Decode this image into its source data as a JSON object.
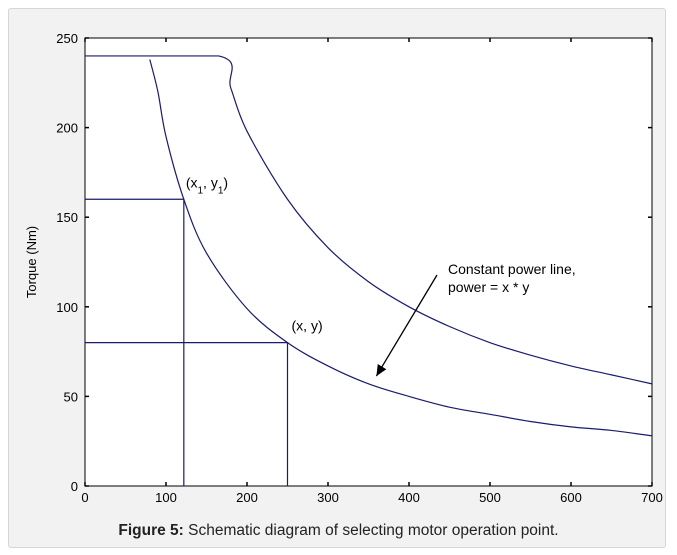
{
  "caption": {
    "label": "Figure 5:",
    "text": " Schematic diagram of selecting motor operation point."
  },
  "colors": {
    "curve": "#1a1a6e",
    "axis": "#000000",
    "panel": "#ffffff",
    "frame_bg": "#f2f2f2"
  },
  "chart_data": {
    "type": "line",
    "title": "",
    "xlabel": "",
    "ylabel": "Torque (Nm)",
    "xlim": [
      0,
      700
    ],
    "ylim": [
      0,
      250
    ],
    "x_ticks": [
      0,
      100,
      200,
      300,
      400,
      500,
      600,
      700
    ],
    "y_ticks": [
      0,
      50,
      100,
      150,
      200,
      250
    ],
    "grid": false,
    "series": [
      {
        "x": [
          0,
          165,
          180,
          200,
          250,
          300,
          350,
          400,
          450,
          500,
          550,
          600,
          650,
          700
        ],
        "y": [
          240,
          240,
          222,
          198,
          160,
          133,
          114,
          100,
          89,
          80,
          73,
          67,
          62,
          57
        ]
      },
      {
        "x": [
          80,
          90,
          100,
          122,
          150,
          200,
          250,
          300,
          350,
          400,
          450,
          500,
          550,
          600,
          650,
          700
        ],
        "y": [
          238,
          220,
          195,
          160,
          130,
          99,
          80,
          67,
          57,
          50,
          44,
          40,
          36,
          33,
          31,
          28
        ]
      },
      {
        "x": [
          0,
          122,
          122
        ],
        "y": [
          160,
          160,
          0
        ]
      },
      {
        "x": [
          0,
          250,
          250
        ],
        "y": [
          80,
          80,
          0
        ]
      }
    ],
    "annotations": [
      {
        "label": "(x1, y1)",
        "x": 122,
        "y": 160
      },
      {
        "label": "(x, y)",
        "x": 250,
        "y": 80
      },
      {
        "lines": [
          "Constant power line,",
          "power = x * y"
        ],
        "x": 340,
        "y": 58
      }
    ]
  }
}
